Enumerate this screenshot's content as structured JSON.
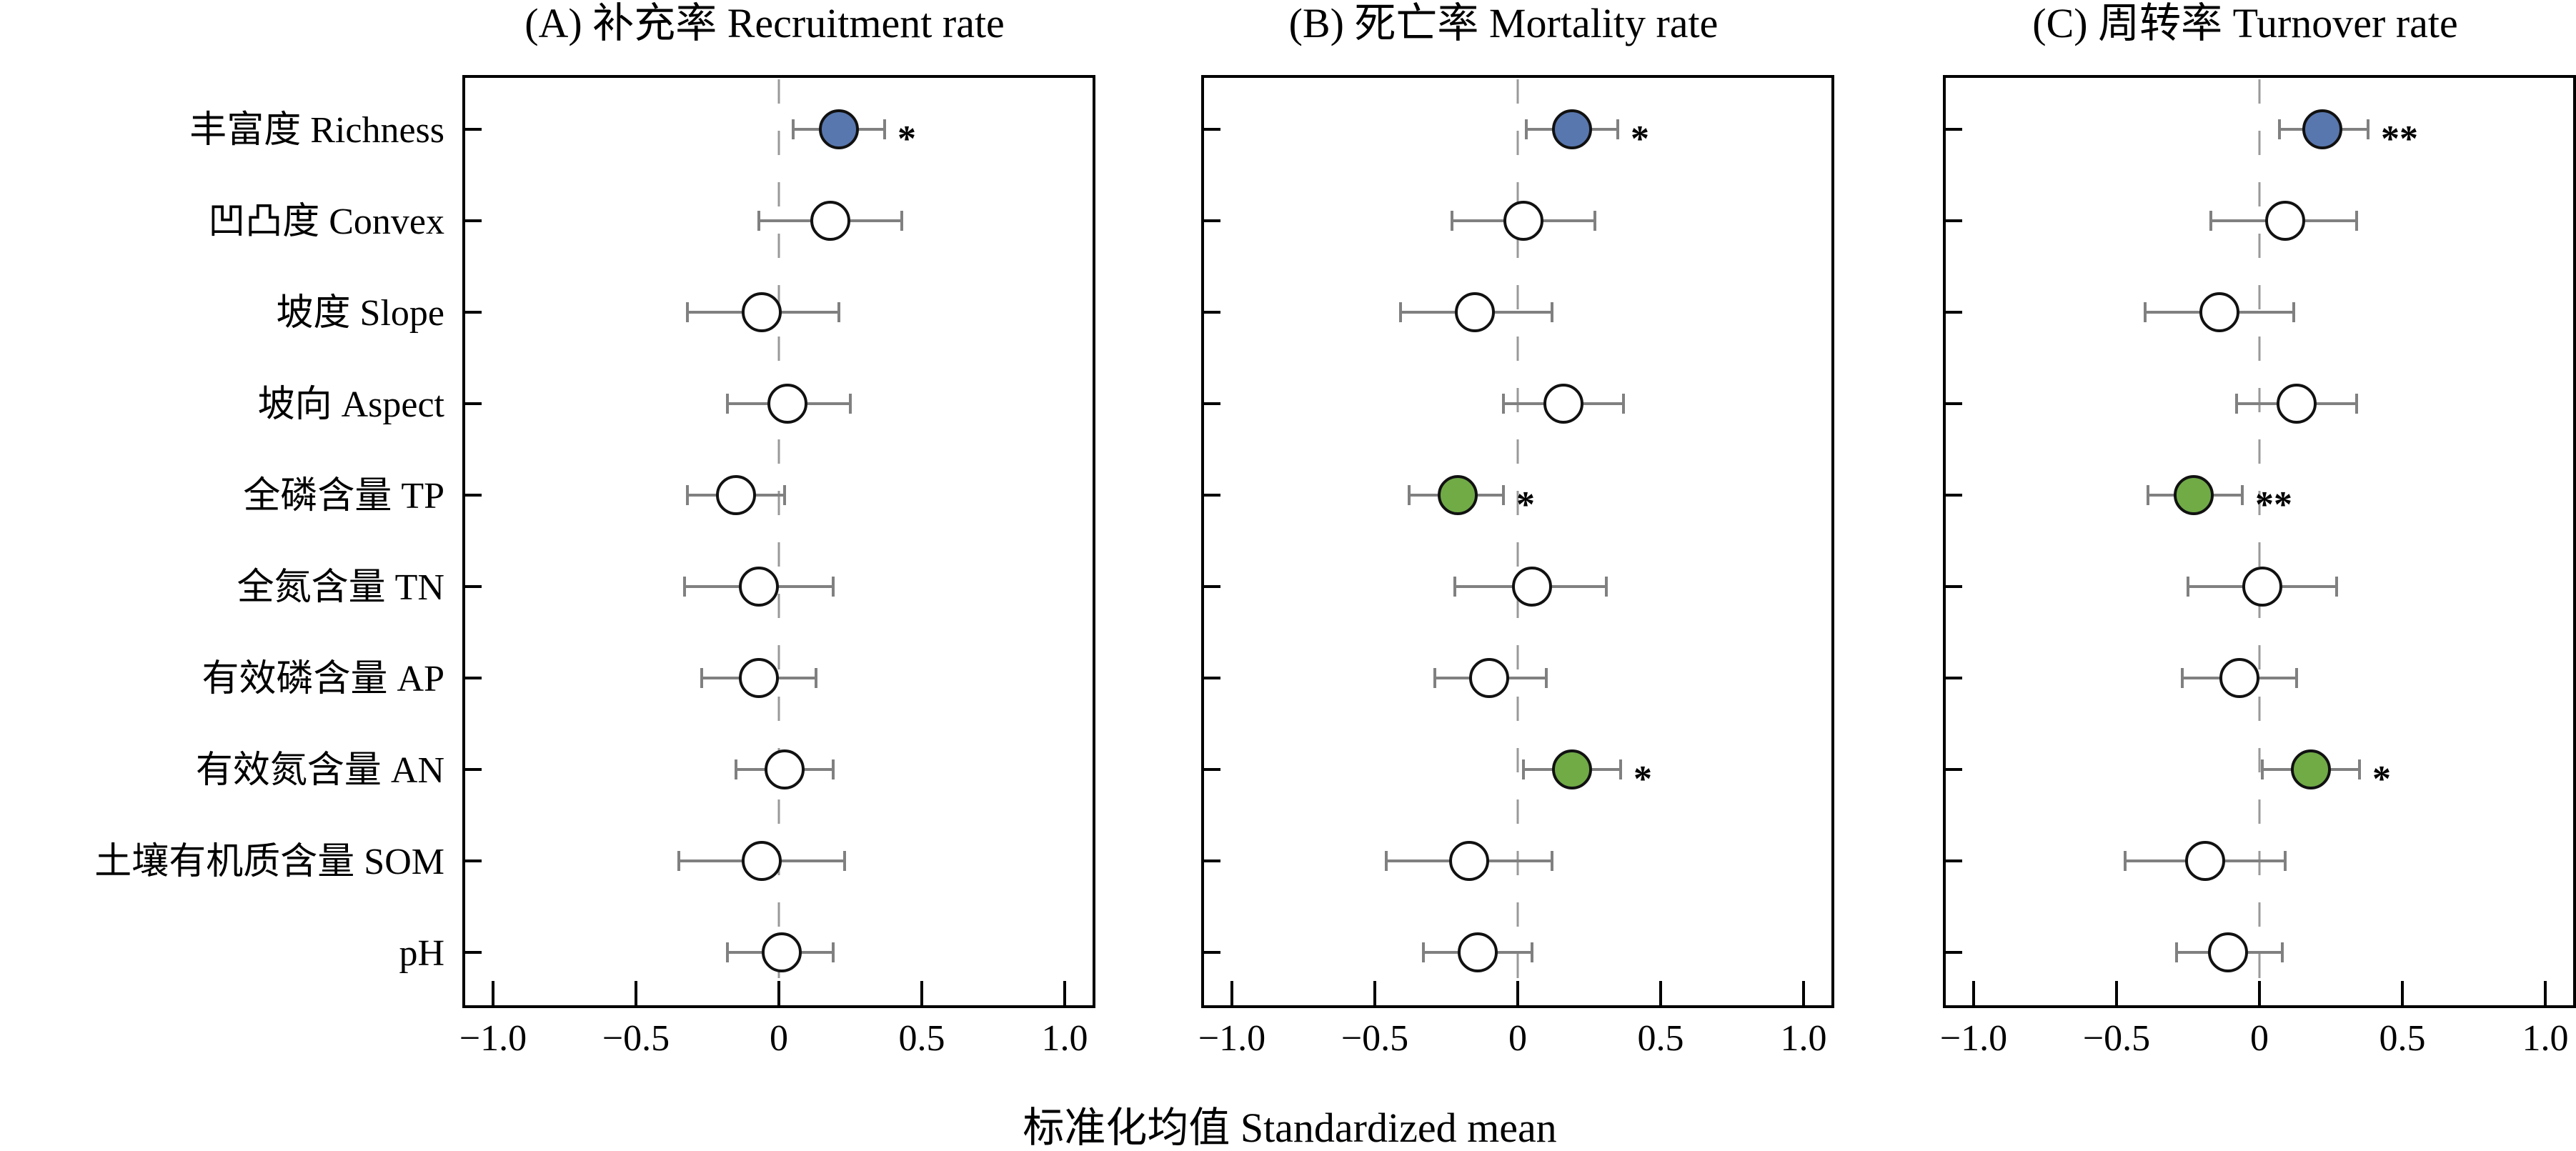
{
  "chart_data": {
    "type": "scatter",
    "subtype": "forest-plot",
    "xlabel": "标准化均值 Standardized mean",
    "xlim": [
      -1.1,
      1.1
    ],
    "xticks": [
      -1.0,
      -0.5,
      0,
      0.5,
      1.0
    ],
    "xtick_labels": [
      "−1.0",
      "−0.5",
      "0",
      "0.5",
      "1.0"
    ],
    "reference_line": 0,
    "categories": [
      "丰富度 Richness",
      "凹凸度 Convex",
      "坡度 Slope",
      "坡向 Aspect",
      "全磷含量 TP",
      "全氮含量 TN",
      "有效磷含量 AP",
      "有效氮含量 AN",
      "土壤有机质含量 SOM",
      "pH"
    ],
    "colors": {
      "positive_significant_diversity": "#5877AF",
      "significant_soil": "#70AB46",
      "nonsignificant": "#FFFFFF",
      "error_bar": "#808080",
      "reference_line": "#999999",
      "marker_edge": "#111111"
    },
    "panels": [
      {
        "title": "(A) 补充率 Recruitment rate",
        "series": [
          {
            "category": "丰富度 Richness",
            "mean": 0.21,
            "lower": 0.05,
            "upper": 0.37,
            "fill": "blue",
            "sig": "*"
          },
          {
            "category": "凹凸度 Convex",
            "mean": 0.18,
            "lower": -0.07,
            "upper": 0.43,
            "fill": "none",
            "sig": ""
          },
          {
            "category": "坡度 Slope",
            "mean": -0.06,
            "lower": -0.32,
            "upper": 0.21,
            "fill": "none",
            "sig": ""
          },
          {
            "category": "坡向 Aspect",
            "mean": 0.03,
            "lower": -0.18,
            "upper": 0.25,
            "fill": "none",
            "sig": ""
          },
          {
            "category": "全磷含量 TP",
            "mean": -0.15,
            "lower": -0.32,
            "upper": 0.02,
            "fill": "none",
            "sig": ""
          },
          {
            "category": "全氮含量 TN",
            "mean": -0.07,
            "lower": -0.33,
            "upper": 0.19,
            "fill": "none",
            "sig": ""
          },
          {
            "category": "有效磷含量 AP",
            "mean": -0.07,
            "lower": -0.27,
            "upper": 0.13,
            "fill": "none",
            "sig": ""
          },
          {
            "category": "有效氮含量 AN",
            "mean": 0.02,
            "lower": -0.15,
            "upper": 0.19,
            "fill": "none",
            "sig": ""
          },
          {
            "category": "土壤有机质含量 SOM",
            "mean": -0.06,
            "lower": -0.35,
            "upper": 0.23,
            "fill": "none",
            "sig": ""
          },
          {
            "category": "pH",
            "mean": 0.01,
            "lower": -0.18,
            "upper": 0.19,
            "fill": "none",
            "sig": ""
          }
        ]
      },
      {
        "title": "(B) 死亡率 Mortality rate",
        "series": [
          {
            "category": "丰富度 Richness",
            "mean": 0.19,
            "lower": 0.03,
            "upper": 0.35,
            "fill": "blue",
            "sig": "*"
          },
          {
            "category": "凹凸度 Convex",
            "mean": 0.02,
            "lower": -0.23,
            "upper": 0.27,
            "fill": "none",
            "sig": ""
          },
          {
            "category": "坡度 Slope",
            "mean": -0.15,
            "lower": -0.41,
            "upper": 0.12,
            "fill": "none",
            "sig": ""
          },
          {
            "category": "坡向 Aspect",
            "mean": 0.16,
            "lower": -0.05,
            "upper": 0.37,
            "fill": "none",
            "sig": ""
          },
          {
            "category": "全磷含量 TP",
            "mean": -0.21,
            "lower": -0.38,
            "upper": -0.05,
            "fill": "green",
            "sig": "*"
          },
          {
            "category": "全氮含量 TN",
            "mean": 0.05,
            "lower": -0.22,
            "upper": 0.31,
            "fill": "none",
            "sig": ""
          },
          {
            "category": "有效磷含量 AP",
            "mean": -0.1,
            "lower": -0.29,
            "upper": 0.1,
            "fill": "none",
            "sig": ""
          },
          {
            "category": "有效氮含量 AN",
            "mean": 0.19,
            "lower": 0.02,
            "upper": 0.36,
            "fill": "green",
            "sig": "*"
          },
          {
            "category": "土壤有机质含量 SOM",
            "mean": -0.17,
            "lower": -0.46,
            "upper": 0.12,
            "fill": "none",
            "sig": ""
          },
          {
            "category": "pH",
            "mean": -0.14,
            "lower": -0.33,
            "upper": 0.05,
            "fill": "none",
            "sig": ""
          }
        ]
      },
      {
        "title": "(C) 周转率 Turnover rate",
        "series": [
          {
            "category": "丰富度 Richness",
            "mean": 0.22,
            "lower": 0.07,
            "upper": 0.38,
            "fill": "blue",
            "sig": "**"
          },
          {
            "category": "凹凸度 Convex",
            "mean": 0.09,
            "lower": -0.17,
            "upper": 0.34,
            "fill": "none",
            "sig": ""
          },
          {
            "category": "坡度 Slope",
            "mean": -0.14,
            "lower": -0.4,
            "upper": 0.12,
            "fill": "none",
            "sig": ""
          },
          {
            "category": "坡向 Aspect",
            "mean": 0.13,
            "lower": -0.08,
            "upper": 0.34,
            "fill": "none",
            "sig": ""
          },
          {
            "category": "全磷含量 TP",
            "mean": -0.23,
            "lower": -0.39,
            "upper": -0.06,
            "fill": "green",
            "sig": "**"
          },
          {
            "category": "全氮含量 TN",
            "mean": 0.01,
            "lower": -0.25,
            "upper": 0.27,
            "fill": "none",
            "sig": ""
          },
          {
            "category": "有效磷含量 AP",
            "mean": -0.07,
            "lower": -0.27,
            "upper": 0.13,
            "fill": "none",
            "sig": ""
          },
          {
            "category": "有效氮含量 AN",
            "mean": 0.18,
            "lower": 0.01,
            "upper": 0.35,
            "fill": "green",
            "sig": "*"
          },
          {
            "category": "土壤有机质含量 SOM",
            "mean": -0.19,
            "lower": -0.47,
            "upper": 0.09,
            "fill": "none",
            "sig": ""
          },
          {
            "category": "pH",
            "mean": -0.11,
            "lower": -0.29,
            "upper": 0.08,
            "fill": "none",
            "sig": ""
          }
        ]
      }
    ]
  }
}
